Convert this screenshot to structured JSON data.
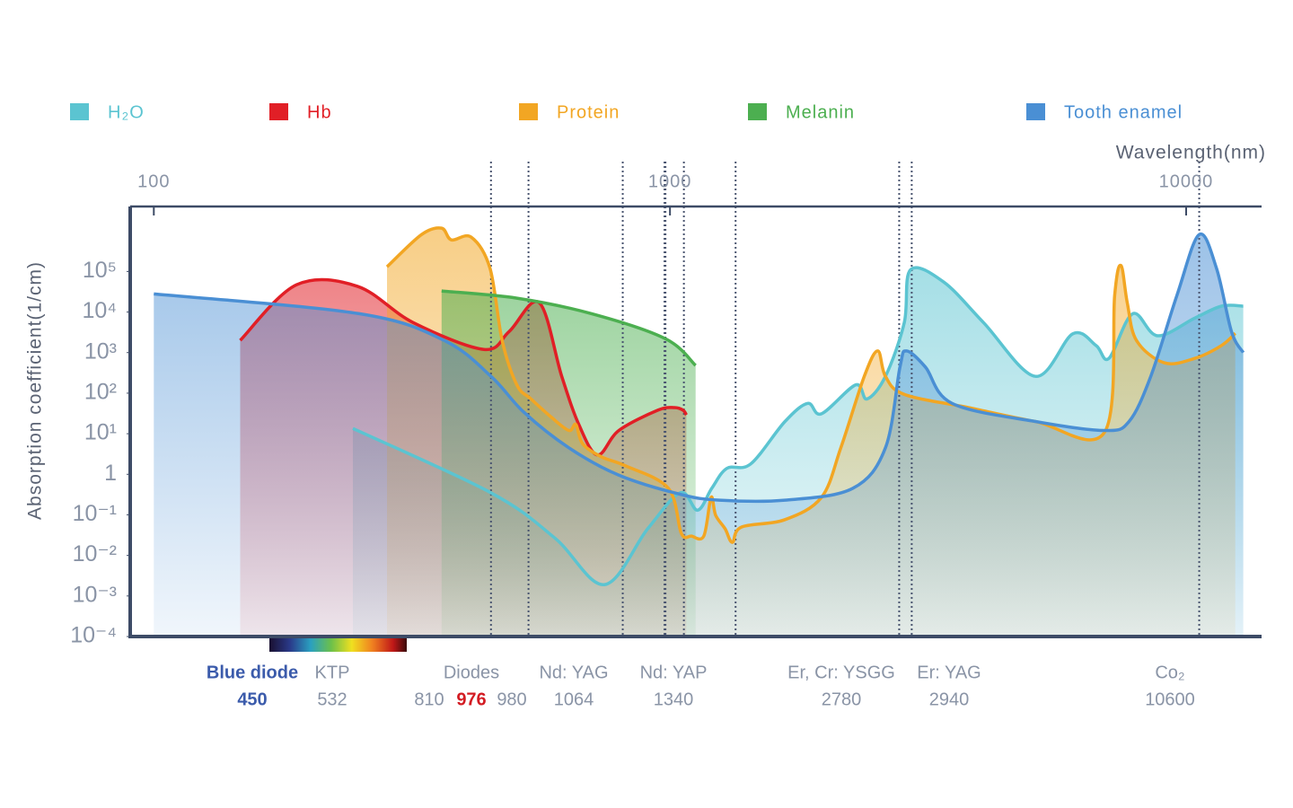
{
  "chart_data": {
    "type": "area",
    "x_label": "Wavelength(nm)",
    "y_label": "Absorption coefficient(1/cm)",
    "xscale": "log",
    "yscale": "log",
    "grid": false,
    "legend_position": "top",
    "xlim": [
      90,
      14000
    ],
    "xticks": [
      100,
      1000,
      10000
    ],
    "ylim": [
      0.0001,
      4000000
    ],
    "yticks": [
      {
        "value": 0.0001,
        "label": "10⁻⁴"
      },
      {
        "value": 0.001,
        "label": "10⁻³"
      },
      {
        "value": 0.01,
        "label": "10⁻²"
      },
      {
        "value": 0.1,
        "label": "10⁻¹"
      },
      1,
      {
        "value": 10,
        "label": "10¹"
      },
      {
        "value": 100,
        "label": "10²"
      },
      {
        "value": 1000,
        "label": "10³"
      },
      {
        "value": 10000,
        "label": "10⁴"
      },
      {
        "value": 100000,
        "label": "10⁵"
      }
    ],
    "series": [
      {
        "name": "H₂O",
        "color": "#5bc4d1",
        "x": [
          243,
          450,
          598,
          746,
          905,
          1047,
          1131,
          1205,
          1289,
          1434,
          1670,
          1848,
          1966,
          2290,
          2408,
          2615,
          2844,
          2924,
          3390,
          4050,
          5105,
          6030,
          6690,
          7085,
          7880,
          8800,
          10390,
          11710,
          12900
        ],
        "values": [
          13.5,
          0.35,
          0.027,
          0.0019,
          0.045,
          0.35,
          0.13,
          0.45,
          1.4,
          1.8,
          20,
          56,
          31,
          160,
          72,
          260,
          5500,
          110000,
          55000,
          5500,
          260,
          2900,
          1500,
          720,
          9100,
          2600,
          7100,
          14000,
          14000
        ]
      },
      {
        "name": "Hb",
        "color": "#e11f26",
        "x": [
          147,
          189,
          248,
          318,
          436,
          488,
          558,
          617,
          667,
          724,
          796,
          947,
          1020,
          1060,
          1076
        ],
        "values": [
          2000,
          47000,
          43000,
          5500,
          1200,
          3300,
          17000,
          260,
          16,
          3.0,
          12,
          38,
          44,
          38,
          29
        ]
      },
      {
        "name": "Protein",
        "color": "#f2a623",
        "x": [
          283,
          330,
          361,
          377,
          412,
          448,
          473,
          505,
          538,
          588,
          637,
          657,
          677,
          736,
          822,
          993,
          1052,
          1100,
          1163,
          1201,
          1226,
          1279,
          1321,
          1375,
          1670,
          1966,
          2143,
          2379,
          2526,
          2615,
          2844,
          3785,
          5105,
          6955,
          7270,
          7480,
          7690,
          8010,
          9065,
          10390,
          11710,
          12450
        ],
        "values": [
          130000,
          810000,
          1170000,
          600000,
          700000,
          120000,
          2000,
          160,
          72,
          26,
          12,
          17,
          5.7,
          2.7,
          1.6,
          0.45,
          0.035,
          0.03,
          0.03,
          0.27,
          0.098,
          0.045,
          0.021,
          0.05,
          0.076,
          0.27,
          4.5,
          260,
          1100,
          260,
          93,
          44,
          20,
          11,
          26000,
          140000,
          17000,
          2000,
          560,
          720,
          1500,
          3000
        ]
      },
      {
        "name": "Melanin",
        "color": "#4caf50",
        "x": [
          361,
          505,
          705,
          980,
          1121
        ],
        "values": [
          33000,
          22000,
          9100,
          2200,
          480
        ]
      },
      {
        "name": "Tooth enamel",
        "color": "#4a8fd4",
        "x": [
          100,
          250,
          365,
          450,
          521,
          637,
          796,
          1047,
          1247,
          1670,
          2260,
          2615,
          2790,
          2870,
          3125,
          3520,
          5105,
          6955,
          7750,
          8540,
          9600,
          10600,
          11450,
          12240,
          12900
        ],
        "values": [
          28000,
          9100,
          2000,
          260,
          34,
          4.5,
          0.95,
          0.32,
          0.23,
          0.23,
          0.45,
          4.5,
          440,
          1100,
          440,
          56,
          20,
          12,
          20,
          260,
          26000,
          810000,
          120000,
          3300,
          1000
        ]
      }
    ],
    "lasers": [
      {
        "name": "Blue diode",
        "wavelengths": [
          450
        ]
      },
      {
        "name": "KTP",
        "wavelengths": [
          532
        ]
      },
      {
        "name": "Diodes",
        "wavelengths": [
          810,
          976,
          980
        ]
      },
      {
        "name": "Nd: YAG",
        "wavelengths": [
          1064
        ]
      },
      {
        "name": "Nd: YAP",
        "wavelengths": [
          1340
        ]
      },
      {
        "name": "Er, Cr: YSGG",
        "wavelengths": [
          2780
        ]
      },
      {
        "name": "Er: YAG",
        "wavelengths": [
          2940
        ]
      },
      {
        "name": "Co₂",
        "wavelengths": [
          10600
        ]
      }
    ]
  }
}
